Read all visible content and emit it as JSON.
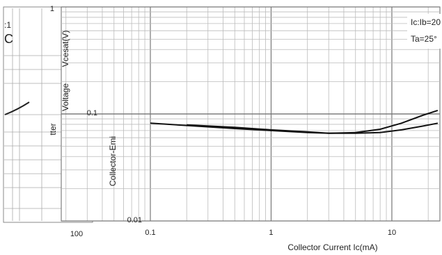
{
  "chart_data": {
    "type": "line",
    "xlabel": "Collector Current   Ic(mA)",
    "ylabel_lines": [
      "Collector-Emi",
      "tter",
      "Voltage",
      "Vcesat(V)"
    ],
    "x_scale": "log",
    "y_scale": "log",
    "xlim": [
      0.1,
      25
    ],
    "ylim": [
      0.01,
      1
    ],
    "x_ticks": [
      {
        "value": 0.1,
        "label": "0.1"
      },
      {
        "value": 1,
        "label": "1"
      },
      {
        "value": 10,
        "label": "10"
      }
    ],
    "y_ticks": [
      {
        "value": 1,
        "label": "1"
      },
      {
        "value": 0.1,
        "label": "0.1"
      },
      {
        "value": 0.01,
        "label": "0.01"
      }
    ],
    "grid": true,
    "annotations": [
      "Ic:Ib=20",
      "Ta=25°"
    ],
    "left_fragment": {
      "texts": [
        ":1",
        "C"
      ],
      "x_tick_label": "100"
    },
    "series": [
      {
        "points": [
          [
            0.1,
            0.082
          ],
          [
            0.2,
            0.078
          ],
          [
            0.5,
            0.073
          ],
          [
            1,
            0.07
          ],
          [
            2,
            0.067
          ],
          [
            3,
            0.066
          ],
          [
            5,
            0.067
          ],
          [
            8,
            0.072
          ],
          [
            12,
            0.082
          ],
          [
            18,
            0.097
          ],
          [
            24,
            0.108
          ]
        ]
      },
      {
        "points": [
          [
            0.2,
            0.079
          ],
          [
            0.5,
            0.075
          ],
          [
            1,
            0.071
          ],
          [
            2,
            0.068
          ],
          [
            3,
            0.066
          ],
          [
            5,
            0.066
          ],
          [
            8,
            0.067
          ],
          [
            12,
            0.071
          ],
          [
            18,
            0.077
          ],
          [
            24,
            0.082
          ]
        ]
      }
    ]
  }
}
